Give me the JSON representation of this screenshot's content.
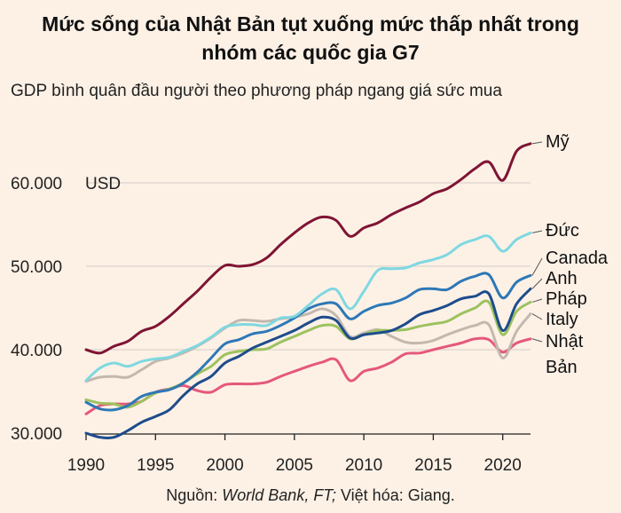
{
  "header": {
    "title_line1": "Mức sống của Nhật Bản tụt xuống mức thấp nhất trong",
    "title_line2": "nhóm các quốc gia G7",
    "subtitle": "GDP bình quân đầu người theo phương pháp ngang giá sức mua"
  },
  "footer": {
    "source_prefix": "Nguồn: ",
    "source_italic": "World Bank, FT;",
    "source_suffix": " Việt hóa: Giang."
  },
  "chart_data": {
    "type": "line",
    "title": "Mức sống của Nhật Bản tụt xuống mức thấp nhất trong nhóm các quốc gia G7",
    "subtitle": "GDP bình quân đầu người theo phương pháp ngang giá sức mua",
    "xlabel": "",
    "ylabel": "USD",
    "xlim": [
      1990,
      2022
    ],
    "ylim": [
      30000,
      65000
    ],
    "x_ticks": [
      1990,
      1995,
      2000,
      2005,
      2010,
      2015,
      2020
    ],
    "x_tick_labels": [
      "1990",
      "1995",
      "2000",
      "2005",
      "2010",
      "2015",
      "2020"
    ],
    "y_ticks": [
      30000,
      40000,
      50000,
      60000
    ],
    "y_tick_labels": [
      "30.000",
      "40.000",
      "50.000",
      "60.000"
    ],
    "y_unit_label": "USD",
    "grid": true,
    "x": [
      1990,
      1991,
      1992,
      1993,
      1994,
      1995,
      1996,
      1997,
      1998,
      1999,
      2000,
      2001,
      2002,
      2003,
      2004,
      2005,
      2006,
      2007,
      2008,
      2009,
      2010,
      2011,
      2012,
      2013,
      2014,
      2015,
      2016,
      2017,
      2018,
      2019,
      2020,
      2021,
      2022
    ],
    "series": [
      {
        "name": "Mỹ",
        "label_lines": [
          "Mỹ"
        ],
        "color": "#7f1434",
        "values": [
          40000,
          39600,
          40400,
          41000,
          42200,
          42800,
          44000,
          45500,
          47000,
          48700,
          50100,
          50000,
          50200,
          51000,
          52600,
          54000,
          55200,
          55900,
          55500,
          53600,
          54600,
          55200,
          56200,
          57000,
          57700,
          58700,
          59300,
          60400,
          61700,
          62500,
          60300,
          63800,
          64700
        ]
      },
      {
        "name": "Đức",
        "label_lines": [
          "Đức"
        ],
        "color": "#7fd8e0",
        "values": [
          36300,
          37800,
          38400,
          38000,
          38600,
          38900,
          39100,
          39800,
          40500,
          41500,
          42700,
          43000,
          43000,
          42900,
          43800,
          44000,
          45300,
          46700,
          47200,
          44900,
          47000,
          49500,
          49700,
          49800,
          50400,
          50800,
          51400,
          52600,
          53200,
          53600,
          51800,
          53200,
          54000
        ]
      },
      {
        "name": "Canada",
        "label_lines": [
          "Canada"
        ],
        "color": "#2d78b7",
        "values": [
          33700,
          32900,
          32800,
          33300,
          34400,
          34900,
          35200,
          36000,
          37300,
          39000,
          40700,
          41200,
          41900,
          42200,
          42900,
          43800,
          44900,
          45500,
          45500,
          43700,
          44600,
          45300,
          45600,
          46200,
          47200,
          47300,
          47200,
          48200,
          48800,
          49000,
          46200,
          48100,
          48900
        ]
      },
      {
        "name": "Anh",
        "label_lines": [
          "Anh"
        ],
        "color": "#1e4c8c",
        "values": [
          30000,
          29500,
          29500,
          30300,
          31300,
          32000,
          32800,
          34500,
          35900,
          36800,
          38400,
          39200,
          40200,
          40900,
          41600,
          42300,
          43200,
          43900,
          43500,
          41400,
          41800,
          42000,
          42300,
          43100,
          44200,
          44700,
          45300,
          46100,
          46400,
          46700,
          42300,
          45500,
          47300
        ]
      },
      {
        "name": "Pháp",
        "label_lines": [
          "Pháp"
        ],
        "color": "#9cc25e",
        "values": [
          34000,
          33600,
          33500,
          33100,
          33800,
          34800,
          35300,
          36000,
          37100,
          38000,
          39400,
          39800,
          40000,
          40100,
          40900,
          41600,
          42300,
          42900,
          42800,
          41300,
          41800,
          42300,
          42300,
          42400,
          42800,
          43100,
          43400,
          44300,
          45000,
          45700,
          41800,
          44600,
          45700
        ]
      },
      {
        "name": "Italy",
        "label_lines": [
          "Italy"
        ],
        "color": "#c2b8ae",
        "values": [
          36200,
          36700,
          36800,
          36700,
          37600,
          38600,
          39000,
          39600,
          40400,
          41400,
          42600,
          43500,
          43500,
          43400,
          43700,
          43900,
          44300,
          44900,
          44100,
          41600,
          42000,
          42400,
          41600,
          40900,
          40800,
          41100,
          41800,
          42400,
          42900,
          43000,
          39000,
          42200,
          44300
        ]
      },
      {
        "name": "Nhật Bản",
        "label_lines": [
          "Nhật",
          "Bản"
        ],
        "color": "#e5587b",
        "values": [
          32300,
          33300,
          33500,
          33500,
          33800,
          34900,
          35300,
          35700,
          35100,
          34900,
          35800,
          35900,
          35900,
          36100,
          36800,
          37400,
          38000,
          38500,
          38800,
          36300,
          37400,
          37800,
          38500,
          39500,
          39600,
          40000,
          40400,
          40800,
          41300,
          41200,
          39700,
          40800,
          41300
        ]
      }
    ]
  }
}
